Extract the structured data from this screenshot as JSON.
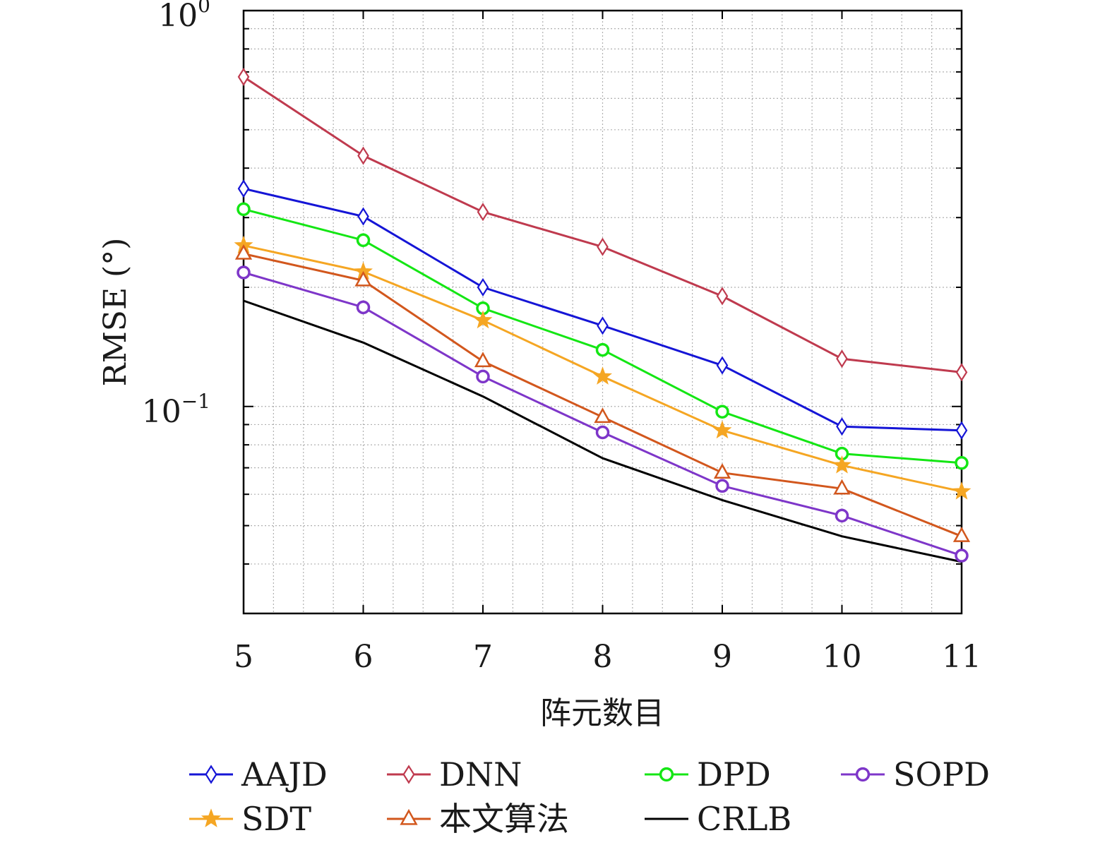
{
  "chart_data": {
    "type": "line",
    "xlabel": "阵元数目",
    "ylabel": "RMSE (°)",
    "x": [
      5,
      6,
      7,
      8,
      9,
      10,
      11
    ],
    "xlim": [
      5,
      11
    ],
    "ylim": [
      0.03,
      1
    ],
    "yscale": "log",
    "grid": true,
    "x_ticks": [
      "5",
      "6",
      "7",
      "8",
      "9",
      "10",
      "11"
    ],
    "y_ticks": [
      {
        "base": "10",
        "exp": "0",
        "value": 1
      },
      {
        "base": "10",
        "exp": "−1",
        "value": 0.1
      }
    ],
    "legend_position": "bottom",
    "series": [
      {
        "name": "AAJD",
        "color": "#1515d6",
        "marker": "diamond",
        "values": [
          0.355,
          0.302,
          0.2,
          0.16,
          0.127,
          0.089,
          0.087
        ]
      },
      {
        "name": "DNN",
        "color": "#bf3a4e",
        "marker": "diamond",
        "values": [
          0.68,
          0.43,
          0.31,
          0.253,
          0.19,
          0.132,
          0.122
        ]
      },
      {
        "name": "DPD",
        "color": "#14e614",
        "marker": "circle",
        "values": [
          0.315,
          0.263,
          0.177,
          0.139,
          0.097,
          0.076,
          0.072
        ]
      },
      {
        "name": "SOPD",
        "color": "#7e36c9",
        "marker": "circle",
        "values": [
          0.218,
          0.178,
          0.119,
          0.086,
          0.063,
          0.053,
          0.042
        ]
      },
      {
        "name": "SDT",
        "color": "#f5a623",
        "marker": "star",
        "values": [
          0.255,
          0.219,
          0.165,
          0.119,
          0.087,
          0.071,
          0.061
        ]
      },
      {
        "name": "本文算法",
        "color": "#d2571d",
        "marker": "triangle",
        "values": [
          0.243,
          0.208,
          0.13,
          0.094,
          0.068,
          0.062,
          0.047
        ]
      },
      {
        "name": "CRLB",
        "color": "#000000",
        "marker": "none",
        "values": [
          0.185,
          0.145,
          0.106,
          0.074,
          0.058,
          0.047,
          0.0405
        ]
      }
    ]
  }
}
